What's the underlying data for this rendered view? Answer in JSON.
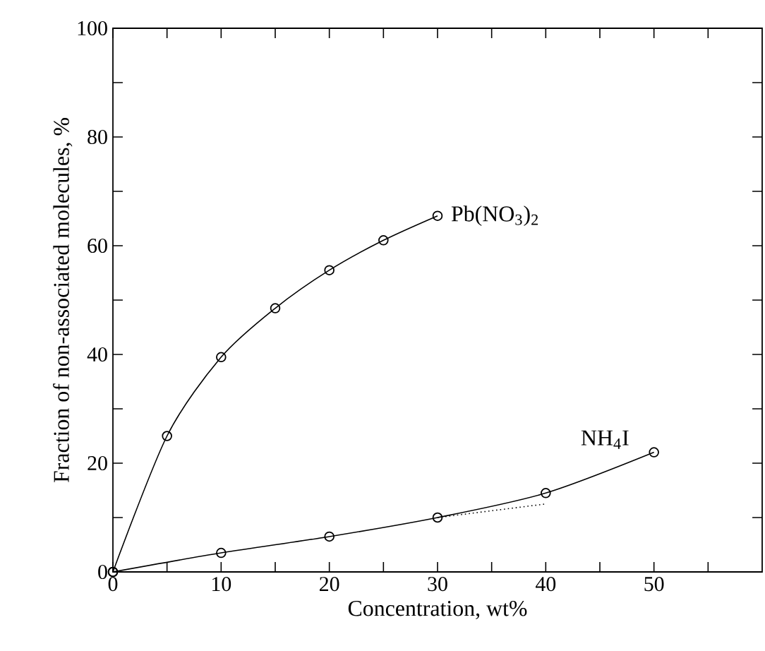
{
  "chart_data": {
    "type": "line",
    "xlabel": "Concentration, wt%",
    "ylabel": "Fraction of non-associated molecules, %",
    "series": [
      {
        "name": "Pb(NO$_{3}$)$_{2}$",
        "color": "#000000",
        "x": [
          0,
          5,
          10,
          15,
          20,
          25,
          30
        ],
        "values": [
          0,
          25,
          39.5,
          48.5,
          55.5,
          61,
          65.5
        ]
      },
      {
        "name": "NH$_{4}$I",
        "color": "#000000",
        "x": [
          0,
          10,
          20,
          30,
          40,
          50
        ],
        "values": [
          0,
          3.5,
          6.5,
          10,
          14.5,
          22
        ]
      },
      {
        "color": "#000000",
        "x": [
          30,
          40
        ],
        "values": [
          10,
          12.5
        ],
        "line_style": "dotted",
        "marker": "none"
      }
    ],
    "xlim": [
      0,
      60
    ],
    "ylim": [
      0,
      100
    ],
    "xticks": [
      0,
      {
        "value": 5,
        "label": null
      },
      10,
      {
        "value": 15,
        "label": null
      },
      20,
      {
        "value": 25,
        "label": null
      },
      30,
      {
        "value": 35,
        "label": null
      },
      40,
      {
        "value": 45,
        "label": null
      },
      50,
      {
        "value": 55,
        "label": null
      }
    ],
    "yticks": [
      0,
      {
        "value": 10,
        "label": null
      },
      20,
      {
        "value": 30,
        "label": null
      },
      40,
      {
        "value": 50,
        "label": null
      },
      60,
      {
        "value": 70,
        "label": null
      },
      80,
      {
        "value": 90,
        "label": null
      },
      100
    ],
    "marker": "circle",
    "line_style": "solid",
    "grid": false,
    "legend": false
  }
}
